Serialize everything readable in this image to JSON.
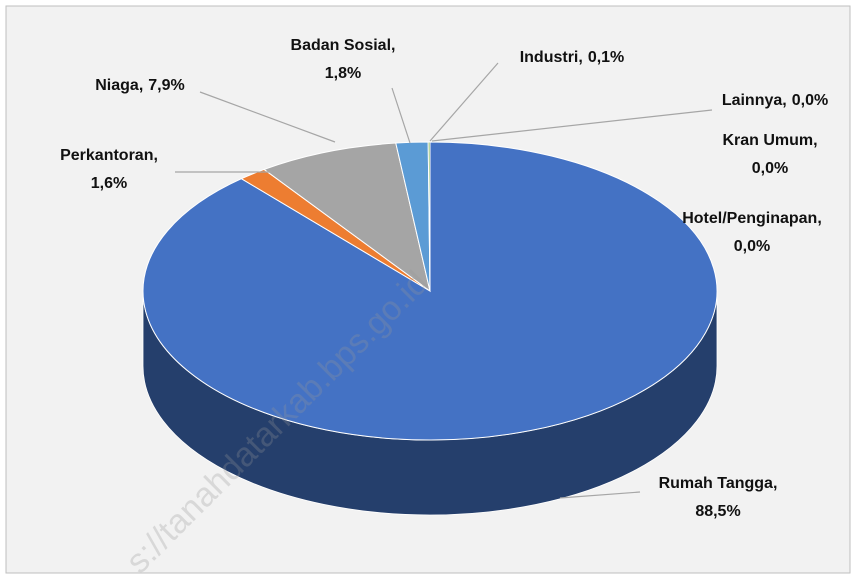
{
  "chart_data": {
    "type": "pie3d",
    "categories": [
      "Rumah Tangga,",
      "Perkantoran,",
      "Niaga,",
      "Badan Sosial,",
      "Industri,",
      "Lainnya,",
      "Kran Umum,",
      "Hotel/Penginapan,"
    ],
    "values": [
      88.5,
      1.6,
      7.9,
      1.8,
      0.1,
      0.0,
      0.0,
      0.0
    ],
    "value_labels": [
      "88,5%",
      "1,6%",
      "7,9%",
      "1,8%",
      "0,1%",
      "0,0%",
      "0,0%",
      "0,0%"
    ],
    "colors": [
      "#4472c4",
      "#ed7d31",
      "#a5a5a5",
      "#5b9bd5",
      "#70ad47",
      "#ffc000",
      "#264478",
      "#9e480e"
    ],
    "watermark": "s://tanahdatarkab.bps.go.id"
  }
}
